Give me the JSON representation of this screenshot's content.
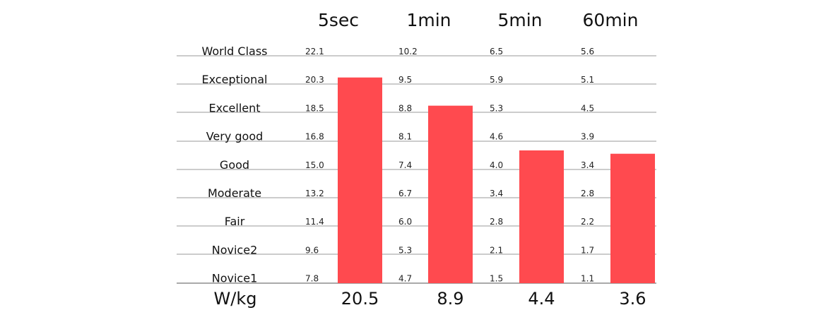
{
  "chart_data": {
    "type": "bar",
    "unit_label": "W/kg",
    "categories": [
      "5sec",
      "1min",
      "5min",
      "60min"
    ],
    "values": [
      20.5,
      8.9,
      4.4,
      3.6
    ],
    "value_labels": [
      "20.5",
      "8.9",
      "4.4",
      "3.6"
    ],
    "levels": [
      "World Class",
      "Exceptional",
      "Excellent",
      "Very good",
      "Good",
      "Moderate",
      "Fair",
      "Novice2",
      "Novice1"
    ],
    "thresholds": [
      [
        "22.1",
        "20.3",
        "18.5",
        "16.8",
        "15.0",
        "13.2",
        "11.4",
        "9.6",
        "7.8"
      ],
      [
        "10.2",
        "9.5",
        "8.8",
        "8.1",
        "7.4",
        "6.7",
        "6.0",
        "5.3",
        "4.7"
      ],
      [
        "6.5",
        "5.9",
        "5.3",
        "4.6",
        "4.0",
        "3.4",
        "2.8",
        "2.1",
        "1.5"
      ],
      [
        "5.6",
        "5.1",
        "4.5",
        "3.9",
        "3.4",
        "2.8",
        "2.2",
        "1.7",
        "1.1"
      ]
    ],
    "bar_color": "#ff4a4f",
    "grid": true
  }
}
